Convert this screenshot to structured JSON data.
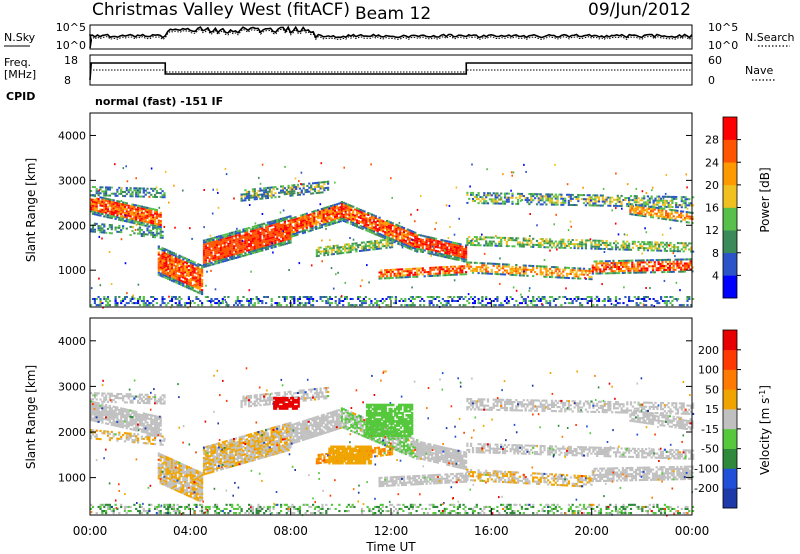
{
  "header": {
    "station": "Christmas Valley West (fitACF)",
    "beam": "Beam 12",
    "date": "09/Jun/2012"
  },
  "sky_panel": {
    "left_label": "N.Sky",
    "right_label": "N.Search",
    "y_ticks": [
      "10^5",
      "10^0"
    ]
  },
  "freq_panel": {
    "left_label_1": "Freq.",
    "left_label_2": "[MHz]",
    "right_label": "Nave",
    "left_ticks": [
      "18",
      "8"
    ],
    "right_ticks": [
      "60",
      "0"
    ],
    "cpid_label": "CPID",
    "mode_text": "normal (fast) -151 IF"
  },
  "colors": {
    "power_scale": [
      "#0000ff",
      "#2b54c8",
      "#3a8a5a",
      "#56c04a",
      "#f0c020",
      "#ff9900",
      "#ff5500",
      "#ff0000"
    ],
    "velocity_scale": [
      "#1e3aa8",
      "#2050d8",
      "#2e8a3a",
      "#55c83c",
      "#c0c0c0",
      "#f0a400",
      "#ff7a00",
      "#ff3a00",
      "#e80000"
    ]
  },
  "chart_data": [
    {
      "type": "heatmap",
      "name": "power",
      "ylabel": "Slant Range [km]",
      "ylim": [
        180,
        4500
      ],
      "y_ticks": [
        1000,
        2000,
        3000,
        4000
      ],
      "xlim_hours": [
        0,
        24
      ],
      "colorbar": {
        "label": "Power [dB]",
        "ticks": [
          "4",
          "8",
          "12",
          "16",
          "20",
          "24",
          "28"
        ],
        "range": [
          0,
          32
        ]
      }
    },
    {
      "type": "heatmap",
      "name": "velocity",
      "ylabel": "Slant Range [km]",
      "ylim": [
        180,
        4500
      ],
      "y_ticks": [
        1000,
        2000,
        3000,
        4000
      ],
      "xlim_hours": [
        0,
        24
      ],
      "xlabel": "Time UT",
      "x_tick_labels": [
        "00:00",
        "04:00",
        "08:00",
        "12:00",
        "16:00",
        "20:00",
        "00:00"
      ],
      "colorbar": {
        "label": "Velocity [m s",
        "label_superscript": "-1",
        "label_close": "]",
        "ticks": [
          "200",
          "100",
          "50",
          "15",
          "-15",
          "-50",
          "-100",
          "-200"
        ]
      }
    }
  ]
}
